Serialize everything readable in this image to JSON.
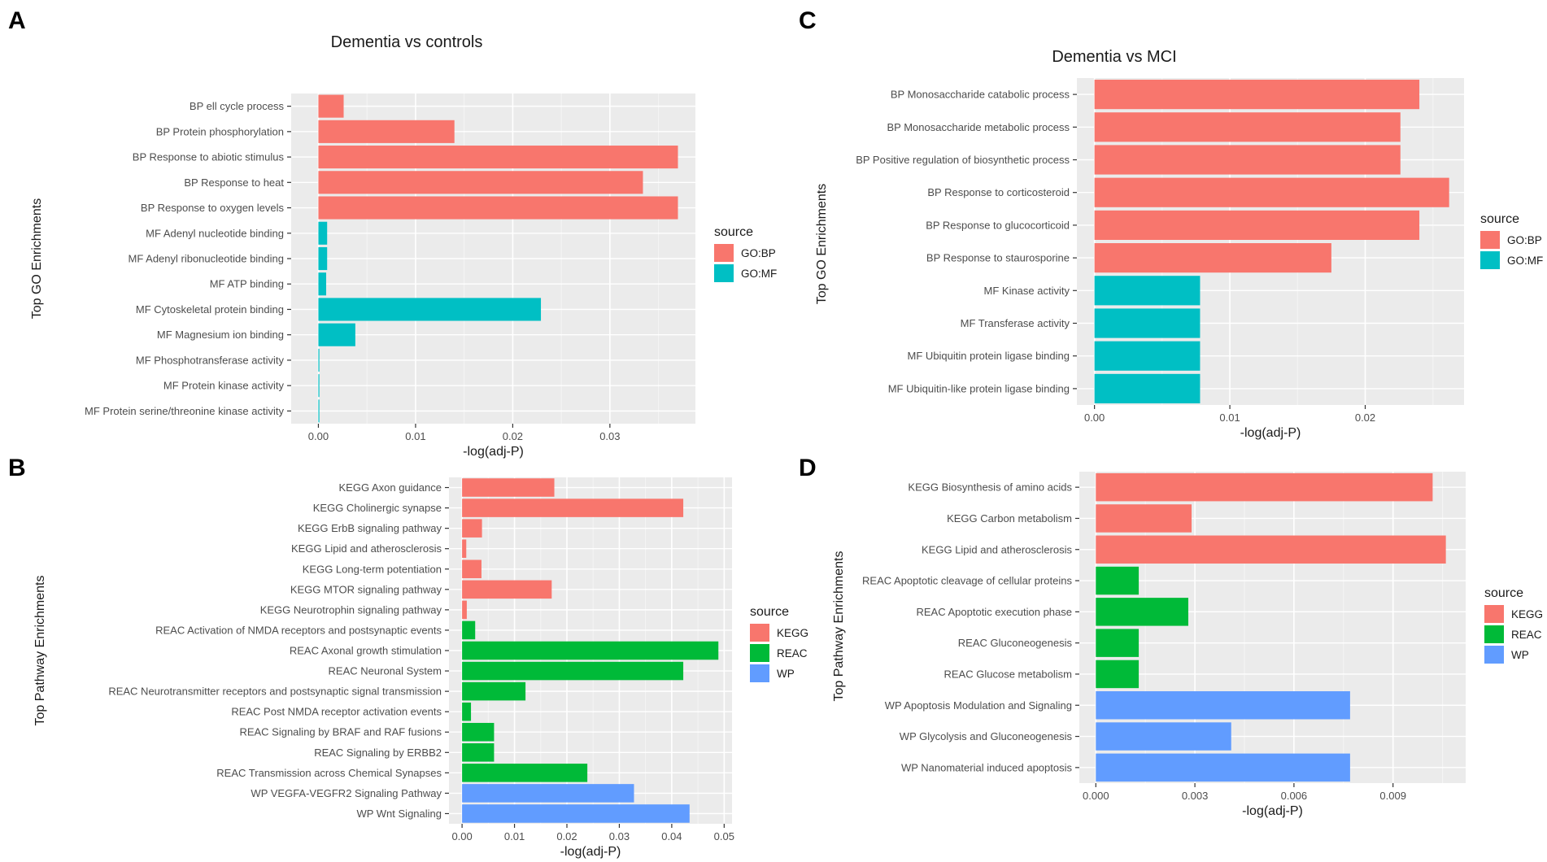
{
  "colors": {
    "panel_bg": "#ebebeb",
    "grid_major": "#ffffff",
    "axis_text": "#4d4d4d",
    "title_text": "#1a1a1a"
  },
  "chart_data": [
    {
      "id": "A",
      "panel_letter": "A",
      "type": "bar",
      "orientation": "horizontal",
      "title": "Dementia vs controls",
      "xlabel": "-log(adj-P)",
      "ylabel": "Top GO Enrichments",
      "xlim": [
        -0.0028,
        0.0388
      ],
      "xticks": [
        0.0,
        0.01,
        0.02,
        0.03
      ],
      "xtick_labels": [
        "0.00",
        "0.01",
        "0.02",
        "0.03"
      ],
      "legend": {
        "title": "source",
        "position": "right",
        "entries": [
          {
            "key": "GO:BP",
            "color": "#f8766d"
          },
          {
            "key": "GO:MF",
            "color": "#00bfc4"
          }
        ]
      },
      "categories": [
        "BP ell cycle process",
        "BP Protein phosphorylation",
        "BP Response to abiotic stimulus",
        "BP Response to heat",
        "BP Response to oxygen levels",
        "MF Adenyl nucleotide binding",
        "MF Adenyl ribonucleotide binding",
        "MF ATP binding",
        "MF Cytoskeletal protein binding",
        "MF Magnesium ion binding",
        "MF Phosphotransferase activity",
        "MF Protein kinase activity",
        "MF Protein serine/threonine kinase activity"
      ],
      "values": [
        0.0026,
        0.014,
        0.037,
        0.0334,
        0.037,
        0.0009,
        0.0009,
        0.0008,
        0.0229,
        0.0038,
        0.0001,
        0.0001,
        0.0001
      ],
      "sources": [
        "GO:BP",
        "GO:BP",
        "GO:BP",
        "GO:BP",
        "GO:BP",
        "GO:MF",
        "GO:MF",
        "GO:MF",
        "GO:MF",
        "GO:MF",
        "GO:MF",
        "GO:MF",
        "GO:MF"
      ]
    },
    {
      "id": "B",
      "panel_letter": "B",
      "type": "bar",
      "orientation": "horizontal",
      "title": "",
      "xlabel": "-log(adj-P)",
      "ylabel": "Top Pathway Enrichments",
      "xlim": [
        -0.0025,
        0.0515
      ],
      "xticks": [
        0.0,
        0.01,
        0.02,
        0.03,
        0.04,
        0.05
      ],
      "xtick_labels": [
        "0.00",
        "0.01",
        "0.02",
        "0.03",
        "0.04",
        "0.05"
      ],
      "legend": {
        "title": "source",
        "position": "right",
        "entries": [
          {
            "key": "KEGG",
            "color": "#f8766d"
          },
          {
            "key": "REAC",
            "color": "#00ba38"
          },
          {
            "key": "WP",
            "color": "#619cff"
          }
        ]
      },
      "categories": [
        "KEGG Axon guidance",
        "KEGG Cholinergic synapse",
        "KEGG ErbB signaling pathway",
        "KEGG Lipid and atherosclerosis",
        "KEGG Long-term potentiation",
        "KEGG MTOR signaling pathway",
        "KEGG Neurotrophin signaling pathway",
        "REAC Activation of NMDA receptors and postsynaptic events",
        "REAC Axonal growth stimulation",
        "REAC Neuronal System",
        "REAC Neurotransmitter receptors and postsynaptic signal transmission",
        "REAC Post NMDA receptor activation events",
        "REAC Signaling by BRAF and RAF fusions",
        "REAC Signaling by ERBB2",
        "REAC Transmission across Chemical Synapses",
        "WP VEGFA-VEGFR2 Signaling Pathway",
        "WP Wnt Signaling"
      ],
      "values": [
        0.0176,
        0.0422,
        0.0038,
        0.0008,
        0.0037,
        0.0171,
        0.0009,
        0.0025,
        0.0489,
        0.0422,
        0.0121,
        0.0017,
        0.0061,
        0.0061,
        0.0239,
        0.0328,
        0.0434
      ],
      "sources": [
        "KEGG",
        "KEGG",
        "KEGG",
        "KEGG",
        "KEGG",
        "KEGG",
        "KEGG",
        "REAC",
        "REAC",
        "REAC",
        "REAC",
        "REAC",
        "REAC",
        "REAC",
        "REAC",
        "WP",
        "WP"
      ]
    },
    {
      "id": "C",
      "panel_letter": "C",
      "type": "bar",
      "orientation": "horizontal",
      "title": "Dementia vs MCI",
      "xlabel": "-log(adj-P)",
      "ylabel": "Top GO Enrichments",
      "xlim": [
        -0.0013,
        0.0273
      ],
      "xticks": [
        0.0,
        0.01,
        0.02
      ],
      "xtick_labels": [
        "0.00",
        "0.01",
        "0.02"
      ],
      "legend": {
        "title": "source",
        "position": "right",
        "entries": [
          {
            "key": "GO:BP",
            "color": "#f8766d"
          },
          {
            "key": "GO:MF",
            "color": "#00bfc4"
          }
        ]
      },
      "categories": [
        "BP Monosaccharide catabolic process",
        "BP Monosaccharide metabolic process",
        "BP Positive regulation of  biosynthetic process",
        "BP Response to corticosteroid",
        "BP Response to glucocorticoid",
        "BP Response to staurosporine",
        "MF Kinase activity",
        "MF Transferase activity",
        "MF Ubiquitin protein ligase binding",
        "MF Ubiquitin-like protein ligase binding"
      ],
      "values": [
        0.024,
        0.0226,
        0.0226,
        0.0262,
        0.024,
        0.0175,
        0.0078,
        0.0078,
        0.0078,
        0.0078
      ],
      "sources": [
        "GO:BP",
        "GO:BP",
        "GO:BP",
        "GO:BP",
        "GO:BP",
        "GO:BP",
        "GO:MF",
        "GO:MF",
        "GO:MF",
        "GO:MF"
      ]
    },
    {
      "id": "D",
      "panel_letter": "D",
      "type": "bar",
      "orientation": "horizontal",
      "title": "",
      "xlabel": "-log(adj-P)",
      "ylabel": "Top Pathway Enrichments",
      "xlim": [
        -0.0005,
        0.0112
      ],
      "xticks": [
        0.0,
        0.003,
        0.006,
        0.009
      ],
      "xtick_labels": [
        "0.000",
        "0.003",
        "0.006",
        "0.009"
      ],
      "legend": {
        "title": "source",
        "position": "right",
        "entries": [
          {
            "key": "KEGG",
            "color": "#f8766d"
          },
          {
            "key": "REAC",
            "color": "#00ba38"
          },
          {
            "key": "WP",
            "color": "#619cff"
          }
        ]
      },
      "categories": [
        "KEGG Biosynthesis of amino acids",
        "KEGG Carbon metabolism",
        "KEGG Lipid and atherosclerosis",
        "REAC Apoptotic cleavage of cellular proteins",
        "REAC Apoptotic execution phase",
        "REAC Gluconeogenesis",
        "REAC Glucose metabolism",
        "WP Apoptosis Modulation and Signaling",
        "WP Glycolysis and Gluconeogenesis",
        "WP Nanomaterial induced apoptosis"
      ],
      "values": [
        0.0102,
        0.0029,
        0.0106,
        0.0013,
        0.0028,
        0.0013,
        0.0013,
        0.0077,
        0.0041,
        0.0077
      ],
      "sources": [
        "KEGG",
        "KEGG",
        "KEGG",
        "REAC",
        "REAC",
        "REAC",
        "REAC",
        "WP",
        "WP",
        "WP"
      ]
    }
  ]
}
